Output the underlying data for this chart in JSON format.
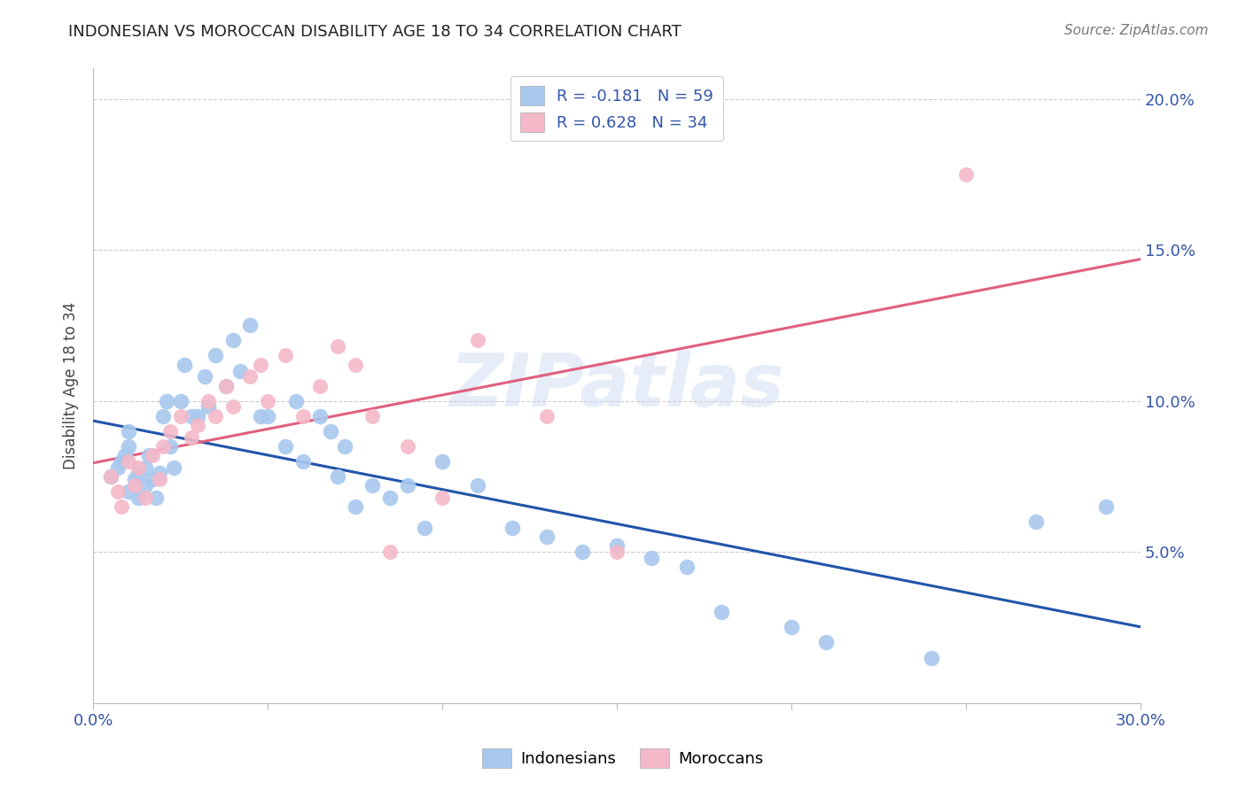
{
  "title": "INDONESIAN VS MOROCCAN DISABILITY AGE 18 TO 34 CORRELATION CHART",
  "source": "Source: ZipAtlas.com",
  "ylabel": "Disability Age 18 to 34",
  "xlim": [
    0.0,
    0.3
  ],
  "ylim": [
    0.0,
    0.21
  ],
  "R_indonesian": -0.181,
  "N_indonesian": 59,
  "R_moroccan": 0.628,
  "N_moroccan": 34,
  "color_indonesian": "#A8C8EE",
  "color_moroccan": "#F4B8C8",
  "line_color_indonesian": "#2255AA",
  "line_color_moroccan": "#E06080",
  "watermark": "ZIPatlas",
  "indonesian_x": [
    0.005,
    0.007,
    0.008,
    0.009,
    0.01,
    0.01,
    0.01,
    0.012,
    0.013,
    0.013,
    0.015,
    0.015,
    0.016,
    0.017,
    0.018,
    0.019,
    0.02,
    0.021,
    0.022,
    0.023,
    0.025,
    0.026,
    0.028,
    0.03,
    0.032,
    0.033,
    0.035,
    0.038,
    0.04,
    0.042,
    0.045,
    0.048,
    0.05,
    0.055,
    0.058,
    0.06,
    0.065,
    0.068,
    0.07,
    0.072,
    0.075,
    0.08,
    0.085,
    0.09,
    0.095,
    0.1,
    0.11,
    0.12,
    0.13,
    0.14,
    0.15,
    0.16,
    0.17,
    0.18,
    0.2,
    0.21,
    0.24,
    0.27,
    0.29
  ],
  "indonesian_y": [
    0.075,
    0.078,
    0.08,
    0.082,
    0.07,
    0.085,
    0.09,
    0.074,
    0.068,
    0.076,
    0.072,
    0.078,
    0.082,
    0.074,
    0.068,
    0.076,
    0.095,
    0.1,
    0.085,
    0.078,
    0.1,
    0.112,
    0.095,
    0.095,
    0.108,
    0.098,
    0.115,
    0.105,
    0.12,
    0.11,
    0.125,
    0.095,
    0.095,
    0.085,
    0.1,
    0.08,
    0.095,
    0.09,
    0.075,
    0.085,
    0.065,
    0.072,
    0.068,
    0.072,
    0.058,
    0.08,
    0.072,
    0.058,
    0.055,
    0.05,
    0.052,
    0.048,
    0.045,
    0.03,
    0.025,
    0.02,
    0.015,
    0.06,
    0.065
  ],
  "moroccan_x": [
    0.005,
    0.007,
    0.008,
    0.01,
    0.012,
    0.013,
    0.015,
    0.017,
    0.019,
    0.02,
    0.022,
    0.025,
    0.028,
    0.03,
    0.033,
    0.035,
    0.038,
    0.04,
    0.045,
    0.048,
    0.05,
    0.055,
    0.06,
    0.065,
    0.07,
    0.075,
    0.08,
    0.085,
    0.09,
    0.1,
    0.11,
    0.13,
    0.15,
    0.25
  ],
  "moroccan_y": [
    0.075,
    0.07,
    0.065,
    0.08,
    0.072,
    0.078,
    0.068,
    0.082,
    0.074,
    0.085,
    0.09,
    0.095,
    0.088,
    0.092,
    0.1,
    0.095,
    0.105,
    0.098,
    0.108,
    0.112,
    0.1,
    0.115,
    0.095,
    0.105,
    0.118,
    0.112,
    0.095,
    0.05,
    0.085,
    0.068,
    0.12,
    0.095,
    0.05,
    0.175
  ]
}
